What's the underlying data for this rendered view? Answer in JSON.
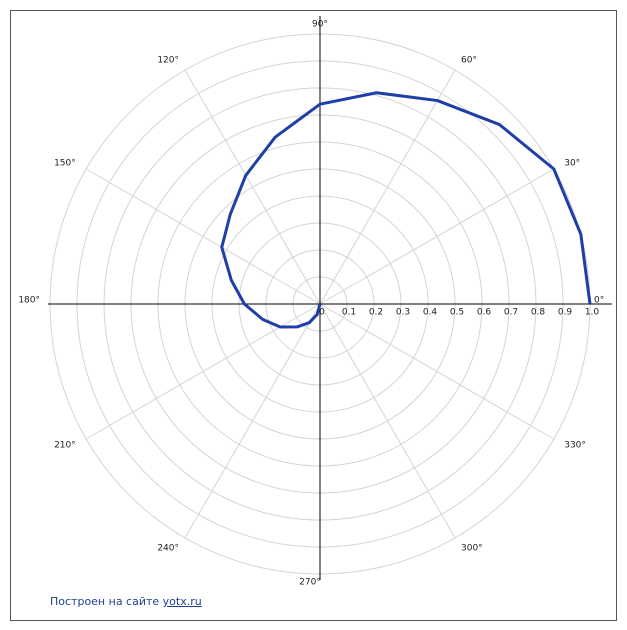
{
  "chart_data": {
    "type": "polar",
    "series": [
      {
        "color": "#1f3fa8",
        "theta": [
          0,
          15,
          30,
          45,
          60,
          75,
          90,
          105,
          120,
          135,
          150,
          165,
          180,
          195,
          210,
          225,
          240,
          255,
          270
        ],
        "r": [
          1.0,
          1.0,
          1.0,
          0.94,
          0.87,
          0.81,
          0.74,
          0.64,
          0.55,
          0.47,
          0.42,
          0.34,
          0.28,
          0.22,
          0.17,
          0.12,
          0.08,
          0.04,
          0
        ]
      }
    ],
    "rlim": [
      0,
      1
    ],
    "rticks": [
      0,
      0.1,
      0.2,
      0.3,
      0.4,
      0.5,
      0.6,
      0.7,
      0.8,
      0.9,
      {
        "value": 1,
        "label": "1.0"
      }
    ],
    "thetaticks": [
      {
        "value": 0,
        "label": "0°"
      },
      {
        "value": 30,
        "label": "30°"
      },
      {
        "value": 60,
        "label": "60°"
      },
      {
        "value": 90,
        "label": "90°"
      },
      {
        "value": 120,
        "label": "120°"
      },
      {
        "value": 150,
        "label": "150°"
      },
      {
        "value": 180,
        "label": "180°"
      },
      {
        "value": 210,
        "label": "210°"
      },
      {
        "value": 240,
        "label": "240°"
      },
      {
        "value": 270,
        "label": "270°"
      },
      {
        "value": 300,
        "label": "300°"
      },
      {
        "value": 330,
        "label": "330°"
      }
    ],
    "grid": true,
    "footer": {
      "text": "Построен на сайте",
      "link": "yotx.ru"
    }
  }
}
